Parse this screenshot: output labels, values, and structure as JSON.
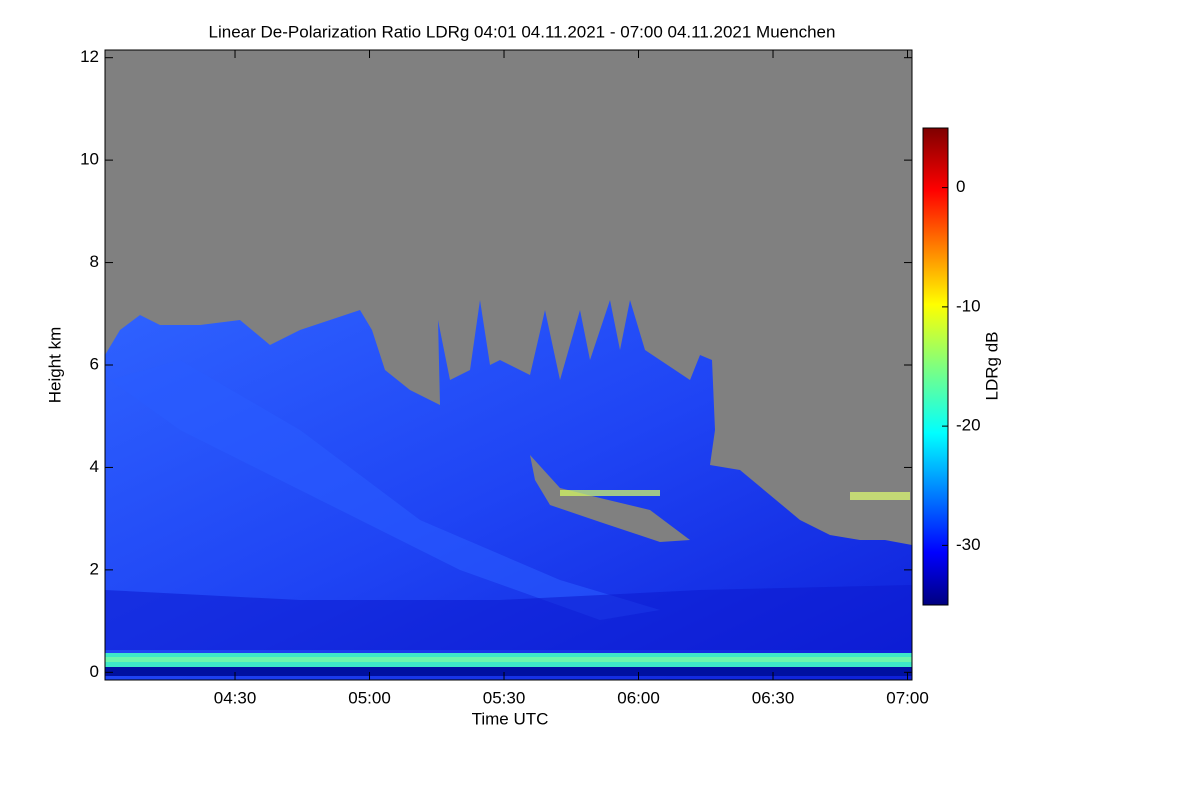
{
  "chart_data": {
    "type": "heatmap",
    "title": "Linear De-Polarization Ratio LDRg   04:01 04.11.2021 - 07:00 04.11.2021 Muenchen",
    "xlabel": "Time UTC",
    "ylabel": "Height km",
    "colorbar_label": "LDRg dB",
    "xlim": [
      "04:01",
      "07:01"
    ],
    "xticks": [
      "04:30",
      "05:00",
      "05:30",
      "06:00",
      "06:30",
      "07:00"
    ],
    "ylim": [
      -0.15,
      12.15
    ],
    "yticks": [
      0,
      2,
      4,
      6,
      8,
      10,
      12
    ],
    "clim": [
      -35,
      5
    ],
    "cticks": [
      0,
      -10,
      -20,
      -30
    ],
    "colormap": "jet",
    "missing_color": "#808080"
  }
}
